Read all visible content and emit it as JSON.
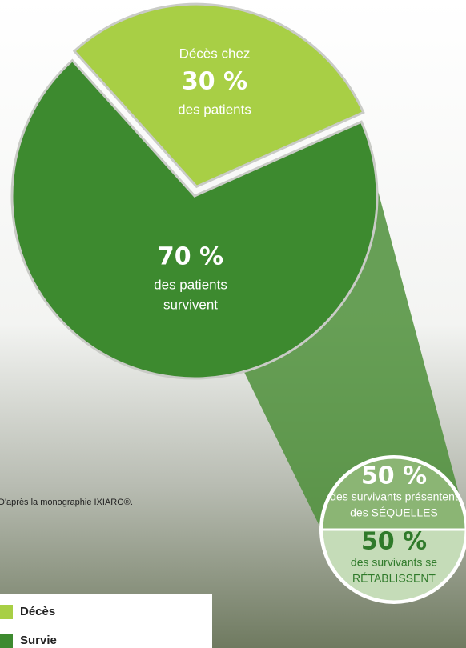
{
  "chart_data": [
    {
      "type": "pie",
      "categories": [
        "Décès",
        "Survie"
      ],
      "values": [
        30,
        70
      ],
      "value_labels": [
        "30 %",
        "70 %"
      ],
      "colors": [
        "#a8cf45",
        "#3d8a2f"
      ],
      "captions": [
        {
          "before": "Décès chez",
          "after": [
            "des patients"
          ]
        },
        {
          "after": [
            "des patients",
            "survivent"
          ]
        }
      ],
      "legend": "bottom-left",
      "footnote": "D'après la monographie IXIARO®."
    },
    {
      "type": "pie",
      "values": [
        50,
        50
      ],
      "value_labels": [
        "50 %",
        "50 %"
      ],
      "colors": [
        "#8bb574",
        "#c5dcb8"
      ],
      "captions": [
        {
          "after": [
            "des survivants présentent",
            "des SÉQUELLES"
          ]
        },
        {
          "after": [
            "des survivants se",
            "RÉTABLISSENT"
          ]
        }
      ]
    }
  ]
}
